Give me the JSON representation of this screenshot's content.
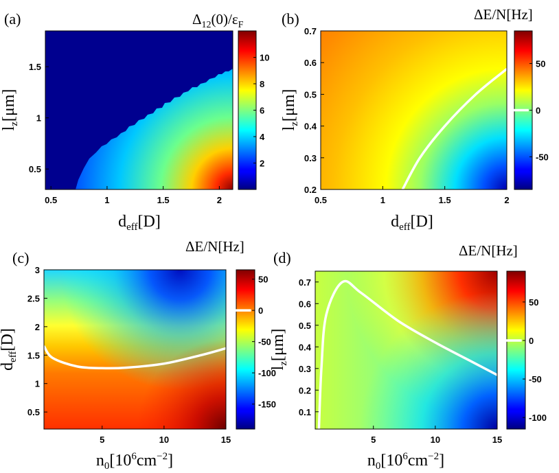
{
  "chart_data": [
    {
      "panel": "(a)",
      "type": "heatmap",
      "colorbar_title": "Δ₁₂(0)/ε_F",
      "xlabel": "d_eff[D]",
      "ylabel": "l_z[μm]",
      "xlim": [
        0.45,
        2.12
      ],
      "ylim": [
        0.3,
        1.85
      ],
      "xticks": [
        "0.5",
        "1",
        "1.5",
        "2"
      ],
      "yticks": [
        "0.5",
        "1",
        "1.5"
      ],
      "colorbar_range": [
        0,
        12
      ],
      "colorbar_ticks": [
        "2",
        "4",
        "6",
        "8",
        "10"
      ],
      "boundary": [
        [
          0.78,
          0.3
        ],
        [
          1.2,
          0.75
        ],
        [
          1.6,
          1.1
        ],
        [
          2.0,
          1.42
        ],
        [
          2.12,
          1.5
        ]
      ],
      "corner_values": {
        "max_at": [
          2.12,
          0.3
        ],
        "max": 11.5
      }
    },
    {
      "panel": "(b)",
      "type": "heatmap",
      "colorbar_title": "ΔE/N[Hz]",
      "xlabel": "d_eff[D]",
      "ylabel": "l_z[μm]",
      "xlim": [
        0.5,
        2.0
      ],
      "ylim": [
        0.2,
        0.7
      ],
      "xticks": [
        "0.5",
        "1",
        "1.5",
        "2"
      ],
      "yticks": [
        "0.2",
        "0.3",
        "0.4",
        "0.5",
        "0.6",
        "0.7"
      ],
      "colorbar_range": [
        -85,
        85
      ],
      "colorbar_ticks": [
        "50",
        "0",
        "-50"
      ],
      "zero_contour": [
        [
          1.16,
          0.2
        ],
        [
          1.3,
          0.3
        ],
        [
          1.5,
          0.4
        ],
        [
          1.75,
          0.5
        ],
        [
          2.0,
          0.58
        ]
      ]
    },
    {
      "panel": "(c)",
      "type": "heatmap",
      "colorbar_title": "ΔE/N[Hz]",
      "xlabel": "n_0[10^6cm^-2]",
      "ylabel": "d_eff[D]",
      "xlim": [
        0.3,
        15
      ],
      "ylim": [
        0.2,
        3.0
      ],
      "xticks": [
        "5",
        "10",
        "15"
      ],
      "yticks": [
        "0.5",
        "1",
        "1.5",
        "2",
        "2.5",
        "3"
      ],
      "colorbar_range": [
        -190,
        65
      ],
      "colorbar_ticks": [
        "50",
        "0",
        "-50",
        "-100",
        "-150"
      ],
      "zero_contour": [
        [
          0.3,
          1.66
        ],
        [
          1,
          1.45
        ],
        [
          3,
          1.3
        ],
        [
          5,
          1.27
        ],
        [
          7,
          1.28
        ],
        [
          10,
          1.35
        ],
        [
          13,
          1.5
        ],
        [
          15,
          1.62
        ]
      ]
    },
    {
      "panel": "(d)",
      "type": "heatmap",
      "colorbar_title": "ΔE/N[Hz]",
      "xlabel": "n_0[10^6cm^-2]",
      "ylabel": "l_z[μm]",
      "xlim": [
        0.3,
        15
      ],
      "ylim": [
        0.02,
        0.75
      ],
      "xticks": [
        "5",
        "10",
        "15"
      ],
      "yticks": [
        "0.1",
        "0.2",
        "0.3",
        "0.4",
        "0.5",
        "0.6",
        "0.7"
      ],
      "colorbar_range": [
        -115,
        90
      ],
      "colorbar_ticks": [
        "50",
        "0",
        "-50",
        "-100"
      ],
      "zero_contour": [
        [
          0.6,
          0.02
        ],
        [
          0.8,
          0.3
        ],
        [
          1.2,
          0.55
        ],
        [
          2.5,
          0.7
        ],
        [
          4,
          0.65
        ],
        [
          7,
          0.52
        ],
        [
          10,
          0.42
        ],
        [
          13,
          0.33
        ],
        [
          15,
          0.27
        ]
      ]
    }
  ]
}
